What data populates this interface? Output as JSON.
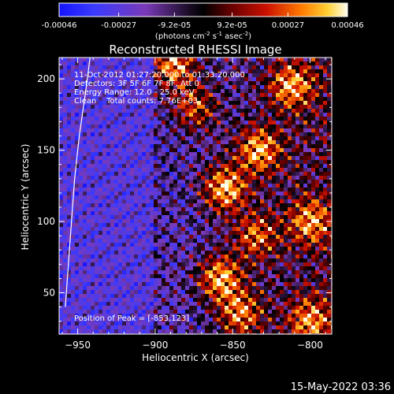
{
  "chart_data": {
    "type": "heatmap",
    "title": "Reconstructed RHESSI Image",
    "xlabel": "Heliocentric X (arcsec)",
    "ylabel": "Heliocentric Y (arcsec)",
    "xlim": [
      -962,
      -786
    ],
    "ylim": [
      21,
      215
    ],
    "x_ticks": [
      -950,
      -900,
      -850,
      -800
    ],
    "y_ticks": [
      50,
      100,
      150,
      200
    ],
    "colorbar": {
      "range": [
        -0.00046,
        0.00046
      ],
      "ticks": [
        "-0.00046",
        "-0.00027",
        "-9.2e-05",
        "9.2e-05",
        "0.00027",
        "0.00046"
      ],
      "tick_values": [
        -0.00046,
        -0.00027,
        -9.2e-05,
        9.2e-05,
        0.00027,
        0.00046
      ],
      "label_main": "(photons cm",
      "label_sup1": "-2",
      "label_mid": " s",
      "label_sup2": "-1",
      "label_end": " asec",
      "label_sup3": "-2",
      "label_close": ")"
    },
    "annotations": [
      "11-Oct-2012 01:27:20.000 to 01:33:20.000",
      "Detectors: 3F 5F 6F 7F 8F, Att 0",
      "Energy Range: 12.0 - 25.0 keV",
      "Clean    Total counts: 7.76E+03"
    ],
    "peak_label": "Position of Peak = [-853,123]",
    "peak": [
      -853,
      123
    ],
    "limb_curve_x": [
      -942,
      -945,
      -949,
      -952,
      -954,
      -956,
      -958
    ],
    "limb_curve_y": [
      215,
      190,
      160,
      130,
      100,
      70,
      40
    ],
    "bright_sources": [
      {
        "x": -888,
        "y": 210,
        "peak": 1.0
      },
      {
        "x": -855,
        "y": 123,
        "peak": 1.0
      },
      {
        "x": -858,
        "y": 60,
        "peak": 0.95
      },
      {
        "x": -833,
        "y": 150,
        "peak": 0.9
      },
      {
        "x": -812,
        "y": 195,
        "peak": 0.85
      },
      {
        "x": -800,
        "y": 100,
        "peak": 0.75
      },
      {
        "x": -835,
        "y": 90,
        "peak": 0.7
      },
      {
        "x": -800,
        "y": 30,
        "peak": 0.75
      },
      {
        "x": -875,
        "y": 180,
        "peak": 0.7
      },
      {
        "x": -845,
        "y": 35,
        "peak": 0.8
      }
    ]
  },
  "footer_date": "15-May-2022 03:36"
}
